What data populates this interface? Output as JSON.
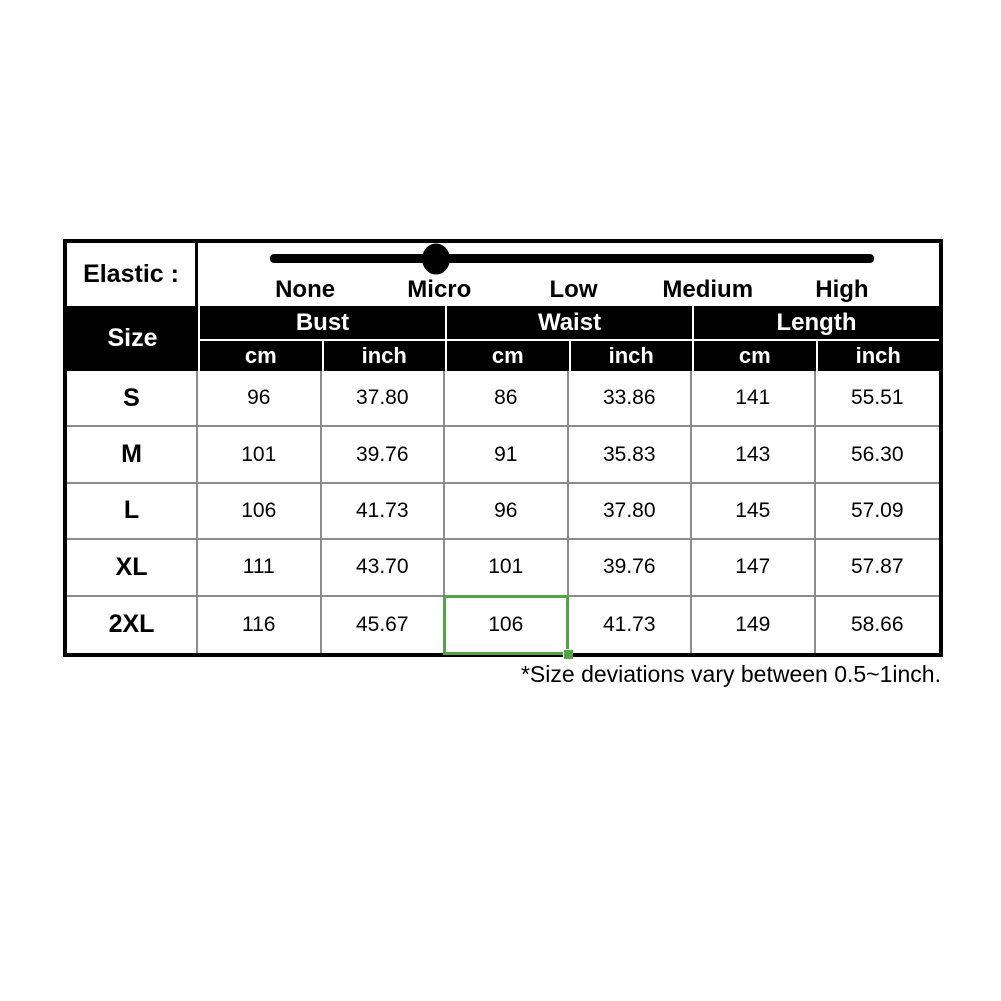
{
  "colors": {
    "accent_green": "#52a447",
    "grid_gray": "#8c8c8c",
    "line_black": "#000000",
    "header_bg": "#000000",
    "header_text": "#ffffff"
  },
  "elastic": {
    "label": "Elastic :",
    "levels": [
      "None",
      "Micro",
      "Low",
      "Medium",
      "High"
    ],
    "selected_level": "Micro",
    "slider_position_pct": 27.5
  },
  "table": {
    "size_header": "Size",
    "groups": [
      "Bust",
      "Waist",
      "Length"
    ],
    "units": [
      "cm",
      "inch"
    ],
    "rows": [
      {
        "size": "S",
        "values": [
          "96",
          "37.80",
          "86",
          "33.86",
          "141",
          "55.51"
        ]
      },
      {
        "size": "M",
        "values": [
          "101",
          "39.76",
          "91",
          "35.83",
          "143",
          "56.30"
        ]
      },
      {
        "size": "L",
        "values": [
          "106",
          "41.73",
          "96",
          "37.80",
          "145",
          "57.09"
        ]
      },
      {
        "size": "XL",
        "values": [
          "111",
          "43.70",
          "101",
          "39.76",
          "147",
          "57.87"
        ]
      },
      {
        "size": "2XL",
        "values": [
          "116",
          "45.67",
          "106",
          "41.73",
          "149",
          "58.66"
        ]
      }
    ],
    "highlighted_cell": {
      "row": "2XL",
      "column": "Waist cm",
      "value": "106"
    }
  },
  "footnote": "*Size deviations vary between 0.5~1inch.",
  "chart_data": {
    "type": "table",
    "title": "Garment size chart with elastic level indicator",
    "elastic_scale": {
      "levels": [
        "None",
        "Micro",
        "Low",
        "Medium",
        "High"
      ],
      "selected": "Micro"
    },
    "columns": [
      "Size",
      "Bust cm",
      "Bust inch",
      "Waist cm",
      "Waist inch",
      "Length cm",
      "Length inch"
    ],
    "rows": [
      [
        "S",
        96,
        37.8,
        86,
        33.86,
        141,
        55.51
      ],
      [
        "M",
        101,
        39.76,
        91,
        35.83,
        143,
        56.3
      ],
      [
        "L",
        106,
        41.73,
        96,
        37.8,
        145,
        57.09
      ],
      [
        "XL",
        111,
        43.7,
        101,
        39.76,
        147,
        57.87
      ],
      [
        "2XL",
        116,
        45.67,
        106,
        41.73,
        149,
        58.66
      ]
    ],
    "highlighted_cell": {
      "row": "2XL",
      "column": "Waist cm",
      "value": 106
    },
    "footnote": "*Size deviations vary between 0.5~1inch."
  }
}
